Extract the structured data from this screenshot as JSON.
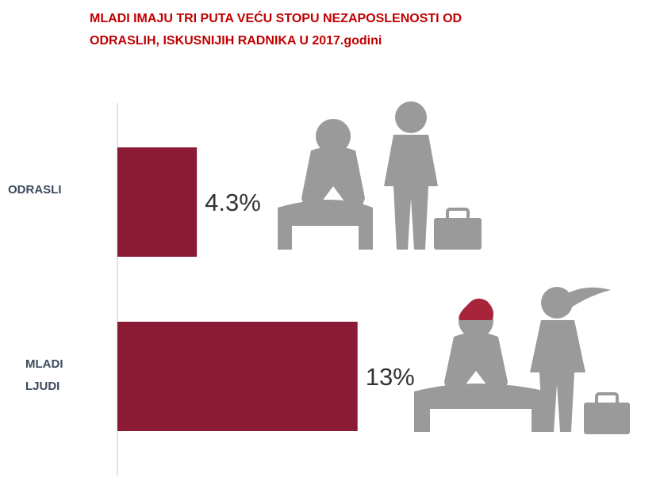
{
  "chart_data": {
    "type": "bar",
    "orientation": "horizontal",
    "title": "MLADI IMAJU TRI PUTA VEĆU STOPU NEZAPOSLENOSTI OD ODRASLIH, ISKUSNIJIH RADNIKA U 2017.godini",
    "categories": [
      "ODRASLI",
      "MLADI LJUDI"
    ],
    "values": [
      4.3,
      13
    ],
    "value_labels": [
      "4.3%",
      "13%"
    ],
    "color": "#8b1a35",
    "xlim": [
      0,
      28
    ]
  }
}
